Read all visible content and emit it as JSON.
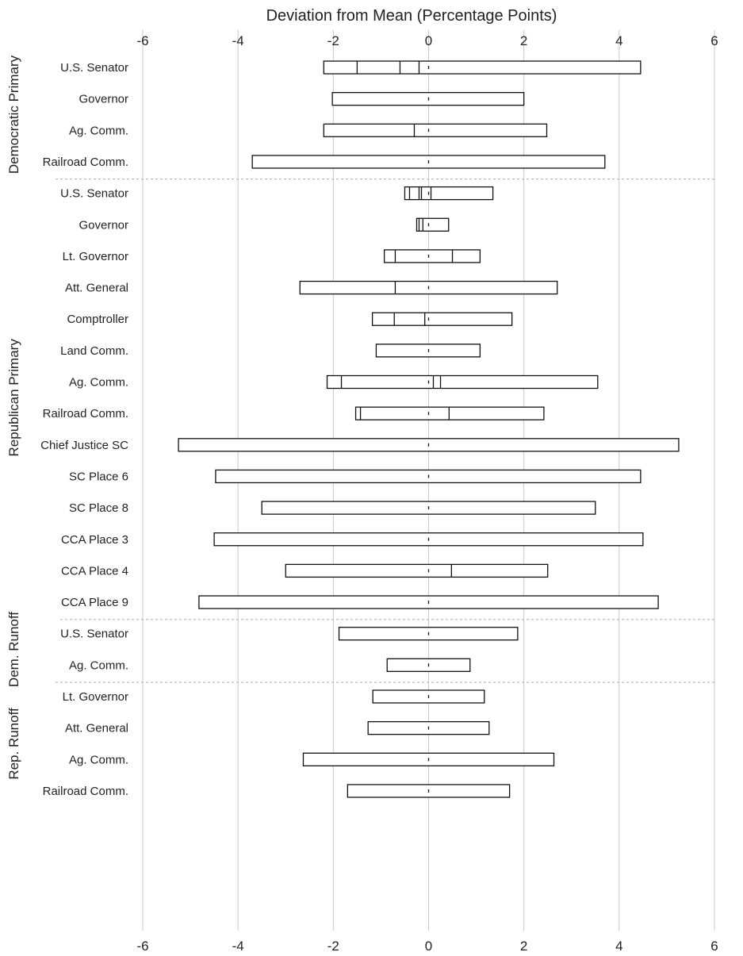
{
  "chart_data": {
    "type": "bar",
    "title": "Deviation from Mean (Percentage Points)",
    "xlabel": "Deviation from Mean (Percentage Points)",
    "xlim": [
      -6,
      6
    ],
    "xticks": [
      "-6",
      "-4",
      "-2",
      "0",
      "2",
      "4",
      "6"
    ],
    "grid": "vertical",
    "groups": [
      {
        "name": "Democratic Primary",
        "rows": [
          {
            "label": "U.S. Senator",
            "min": -2.2,
            "max": 4.45,
            "dividers": [
              -1.5,
              -0.6,
              -0.2
            ]
          },
          {
            "label": "Governor",
            "min": -2.02,
            "max": 2.0,
            "dividers": []
          },
          {
            "label": "Ag. Comm.",
            "min": -2.2,
            "max": 2.48,
            "dividers": [
              -0.3
            ]
          },
          {
            "label": "Railroad Comm.",
            "min": -3.7,
            "max": 3.7,
            "dividers": []
          }
        ]
      },
      {
        "name": "Republican Primary",
        "rows": [
          {
            "label": "U.S. Senator",
            "min": -0.5,
            "max": 1.35,
            "dividers": [
              -0.4,
              -0.2,
              -0.15,
              0.05
            ]
          },
          {
            "label": "Governor",
            "min": -0.25,
            "max": 0.42,
            "dividers": [
              -0.2,
              -0.12
            ]
          },
          {
            "label": "Lt. Governor",
            "min": -0.93,
            "max": 1.08,
            "dividers": [
              -0.7,
              0.5
            ]
          },
          {
            "label": "Att. General",
            "min": -2.7,
            "max": 2.7,
            "dividers": [
              -0.7
            ]
          },
          {
            "label": "Comptroller",
            "min": -1.18,
            "max": 1.75,
            "dividers": [
              -0.72,
              -0.08
            ]
          },
          {
            "label": "Land Comm.",
            "min": -1.1,
            "max": 1.08,
            "dividers": []
          },
          {
            "label": "Ag. Comm.",
            "min": -2.13,
            "max": 3.55,
            "dividers": [
              -1.83,
              0.1,
              0.25
            ]
          },
          {
            "label": "Railroad Comm.",
            "min": -1.53,
            "max": 2.42,
            "dividers": [
              -1.43,
              0.43
            ]
          },
          {
            "label": "Chief Justice SC",
            "min": -5.25,
            "max": 5.25,
            "dividers": []
          },
          {
            "label": "SC Place 6",
            "min": -4.47,
            "max": 4.45,
            "dividers": []
          },
          {
            "label": "SC Place 8",
            "min": -3.5,
            "max": 3.5,
            "dividers": []
          },
          {
            "label": "CCA Place 3",
            "min": -4.5,
            "max": 4.5,
            "dividers": []
          },
          {
            "label": "CCA Place 4",
            "min": -3.0,
            "max": 2.5,
            "dividers": [
              0.48
            ]
          },
          {
            "label": "CCA Place 9",
            "min": -4.82,
            "max": 4.82,
            "dividers": []
          }
        ]
      },
      {
        "name": "Dem. Runoff",
        "rows": [
          {
            "label": "U.S. Senator",
            "min": -1.88,
            "max": 1.87,
            "dividers": []
          },
          {
            "label": "Ag. Comm.",
            "min": -0.87,
            "max": 0.87,
            "dividers": []
          }
        ]
      },
      {
        "name": "Rep. Runoff",
        "rows": [
          {
            "label": "Lt. Governor",
            "min": -1.17,
            "max": 1.17,
            "dividers": []
          },
          {
            "label": "Att. General",
            "min": -1.27,
            "max": 1.27,
            "dividers": []
          },
          {
            "label": "Ag. Comm.",
            "min": -2.63,
            "max": 2.63,
            "dividers": []
          },
          {
            "label": "Railroad Comm.",
            "min": -1.7,
            "max": 1.7,
            "dividers": []
          }
        ]
      }
    ]
  }
}
